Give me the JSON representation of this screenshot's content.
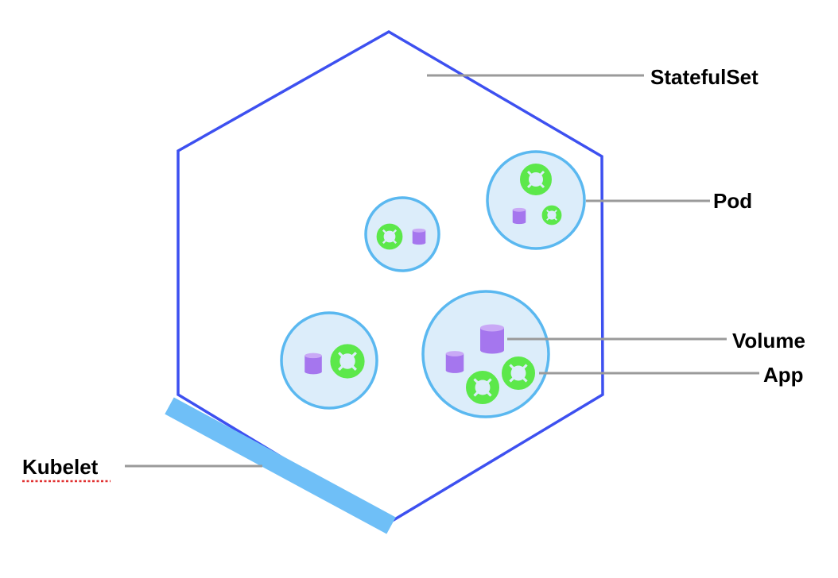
{
  "labels": {
    "statefulset": "StatefulSet",
    "pod": "Pod",
    "volume": "Volume",
    "app": "App",
    "kubelet": "Kubelet"
  },
  "icons": {
    "app": "app-lifebuoy-icon",
    "volume": "volume-cylinder-icon"
  },
  "colors": {
    "hexagon_stroke": "#3d50f0",
    "pod_fill": "#dcedfa",
    "pod_stroke": "#5ab8f0",
    "app_icon": "#5ce84a",
    "volume_icon": "#a576ee",
    "kubelet_bar": "#6fbff7",
    "leader_line": "#9a9a9a",
    "spellcheck_underline": "#e03030"
  }
}
